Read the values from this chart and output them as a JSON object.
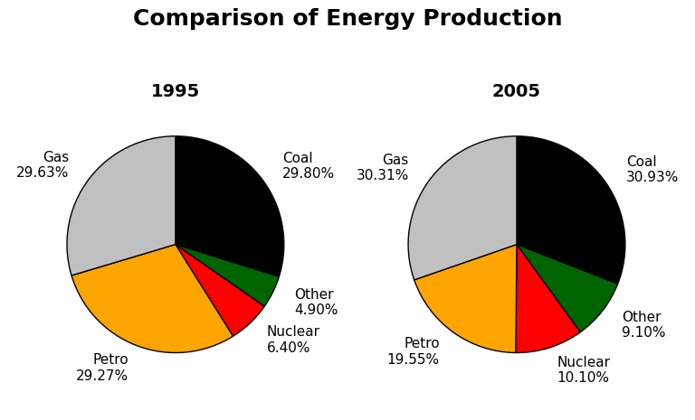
{
  "title": "Comparison of Energy Production",
  "title_fontsize": 18,
  "title_fontweight": "bold",
  "pie1_year": "1995",
  "pie2_year": "2005",
  "year_fontsize": 14,
  "year_color": "#000000",
  "categories": [
    "Coal",
    "Other",
    "Nuclear",
    "Petro",
    "Gas"
  ],
  "values_1995": [
    29.8,
    4.9,
    6.4,
    29.27,
    29.63
  ],
  "values_2005": [
    30.93,
    9.1,
    10.1,
    19.55,
    30.31
  ],
  "colors": [
    "#000000",
    "#006400",
    "#FF0000",
    "#FFA500",
    "#C0C0C0"
  ],
  "label_fontsize": 11,
  "background_color": "#FFFFFF",
  "startangle": 90,
  "labeldistance": 1.22
}
